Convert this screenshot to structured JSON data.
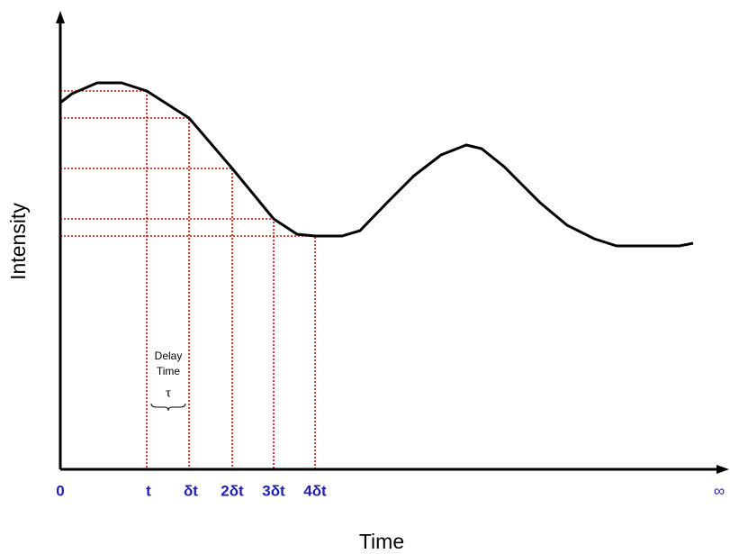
{
  "axes": {
    "x_label": "Time",
    "y_label": "Intensity"
  },
  "x_ticks": [
    "0",
    "t",
    "δt",
    "2δt",
    "3δt",
    "4δt",
    "∞"
  ],
  "annotation": {
    "line1": "Delay",
    "line2": "Time",
    "symbol": "τ"
  }
}
